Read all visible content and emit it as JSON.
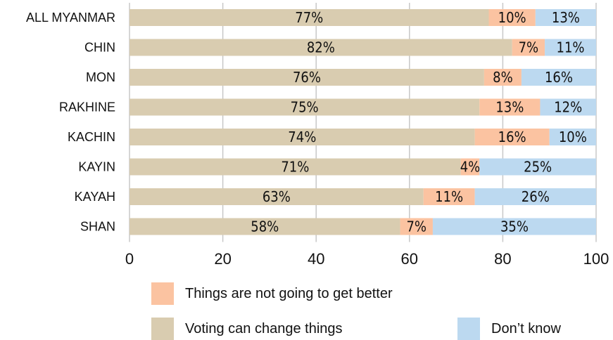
{
  "chart_data": {
    "type": "bar",
    "orientation": "horizontal",
    "stacked": true,
    "categories": [
      "ALL MYANMAR",
      "CHIN",
      "MON",
      "RAKHINE",
      "KACHIN",
      "KAYIN",
      "KAYAH",
      "SHAN"
    ],
    "series": [
      {
        "name": "Voting can change things",
        "color": "#d9ccb0",
        "values": [
          77,
          82,
          76,
          75,
          74,
          71,
          63,
          58
        ]
      },
      {
        "name": "Things are not going to get better",
        "color": "#fbc3a1",
        "values": [
          10,
          7,
          8,
          13,
          16,
          4,
          11,
          7
        ]
      },
      {
        "name": "Don’t know",
        "color": "#bcd9f0",
        "values": [
          13,
          11,
          16,
          12,
          10,
          25,
          26,
          35
        ]
      }
    ],
    "value_labels": [
      [
        "77%",
        "82%",
        "76%",
        "75%",
        "74%",
        "71%",
        "63%",
        "58%"
      ],
      [
        "10%",
        "7%",
        "8%",
        "13%",
        "16%",
        "4%",
        "11%",
        "7%"
      ],
      [
        "13%",
        "11%",
        "16%",
        "12%",
        "10%",
        "25%",
        "26%",
        "35%"
      ]
    ],
    "xlim": [
      0,
      100
    ],
    "xticks": [
      "0",
      "20",
      "40",
      "60",
      "80",
      "100"
    ],
    "grid": "vertical",
    "legend_position": "bottom"
  },
  "legend": {
    "items": [
      {
        "label": "Things are not going to get better",
        "color": "#fbc3a1"
      },
      {
        "label": "Voting can change things",
        "color": "#d9ccb0"
      },
      {
        "label": "Don’t know",
        "color": "#bcd9f0"
      }
    ]
  }
}
